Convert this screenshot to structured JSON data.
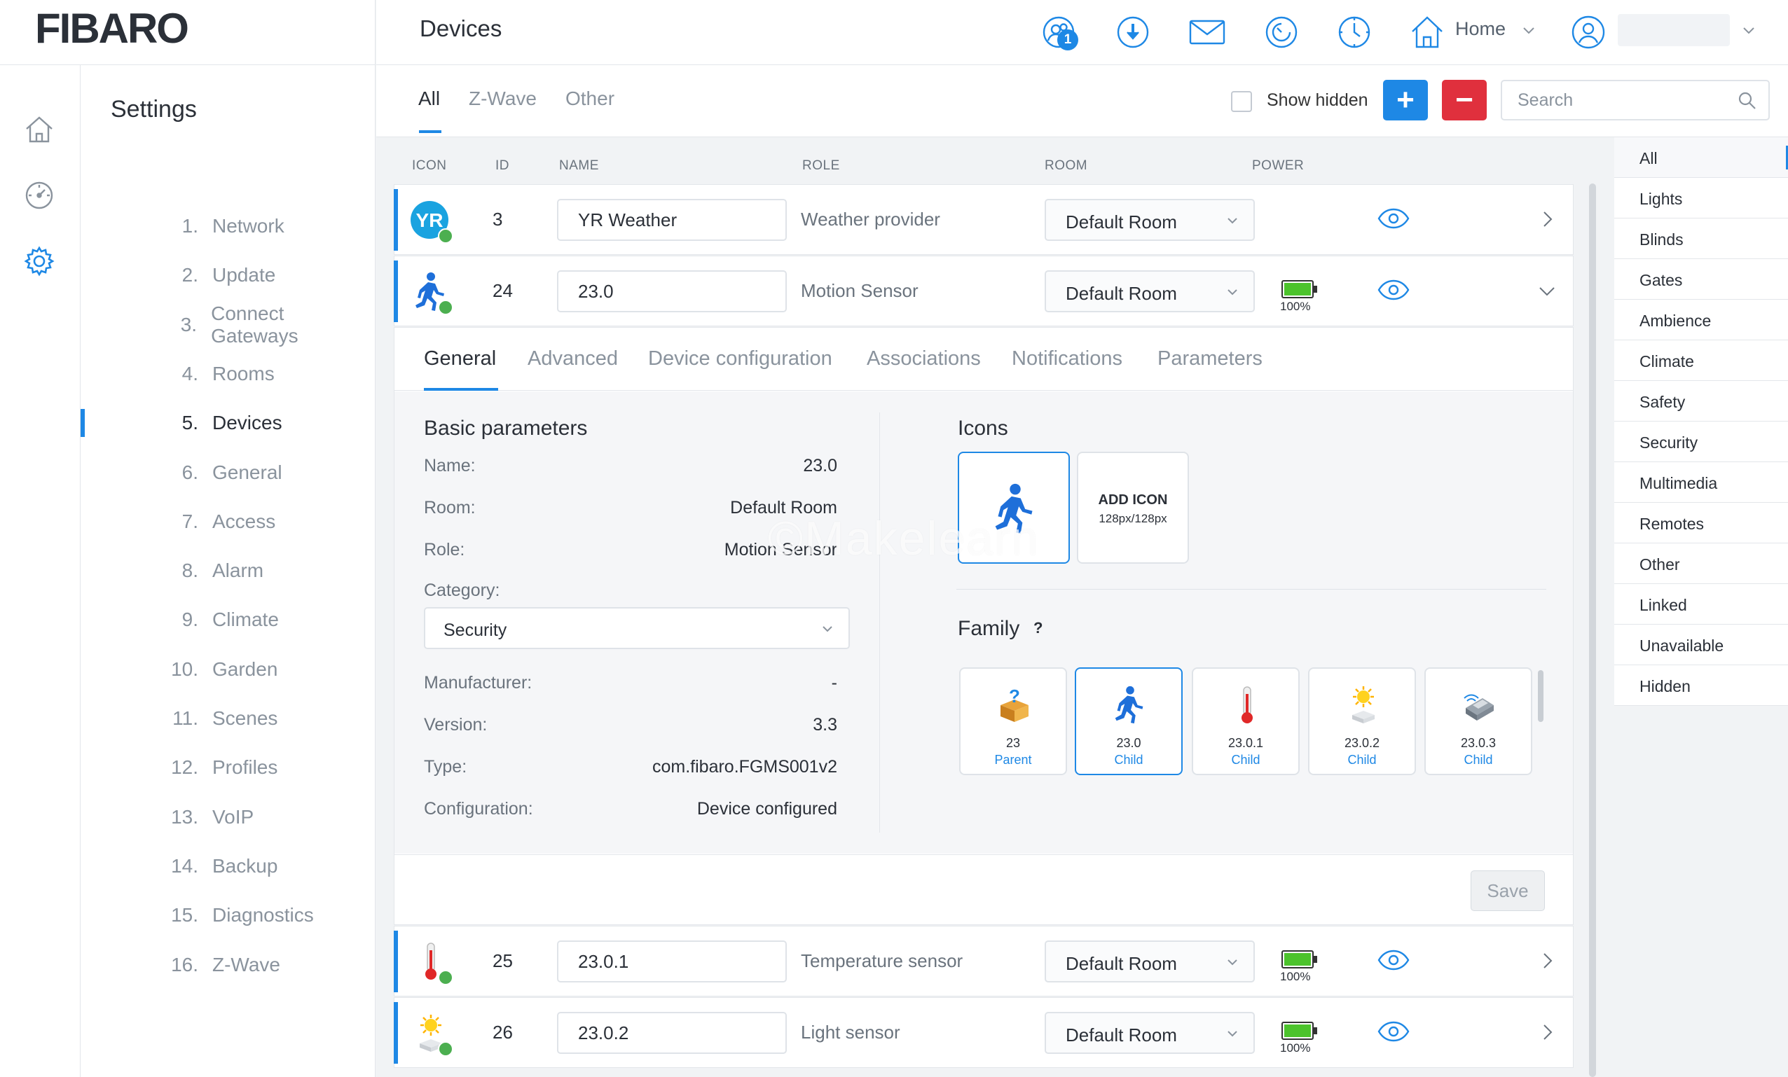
{
  "app": {
    "logo": "FIBARO"
  },
  "header": {
    "title": "Devices",
    "users_badge": "1",
    "home_label": "Home"
  },
  "settings": {
    "title": "Settings",
    "items": [
      {
        "num": "1.",
        "label": "Network"
      },
      {
        "num": "2.",
        "label": "Update"
      },
      {
        "num": "3.",
        "label": "Connect Gateways"
      },
      {
        "num": "4.",
        "label": "Rooms"
      },
      {
        "num": "5.",
        "label": "Devices"
      },
      {
        "num": "6.",
        "label": "General"
      },
      {
        "num": "7.",
        "label": "Access"
      },
      {
        "num": "8.",
        "label": "Alarm"
      },
      {
        "num": "9.",
        "label": "Climate"
      },
      {
        "num": "10.",
        "label": "Garden"
      },
      {
        "num": "11.",
        "label": "Scenes"
      },
      {
        "num": "12.",
        "label": "Profiles"
      },
      {
        "num": "13.",
        "label": "VoIP"
      },
      {
        "num": "14.",
        "label": "Backup"
      },
      {
        "num": "15.",
        "label": "Diagnostics"
      },
      {
        "num": "16.",
        "label": "Z-Wave"
      }
    ],
    "active_index": 4
  },
  "tabs": {
    "all": "All",
    "zwave": "Z-Wave",
    "other": "Other"
  },
  "toolbar": {
    "show_hidden_label": "Show hidden",
    "add_symbol": "+",
    "remove_symbol": "−",
    "search_placeholder": "Search"
  },
  "columns": {
    "icon": "ICON",
    "id": "ID",
    "name": "NAME",
    "role": "ROLE",
    "room": "ROOM",
    "power": "POWER"
  },
  "devices": [
    {
      "id": "3",
      "name": "YR Weather",
      "role": "Weather provider",
      "room": "Default Room",
      "power": "",
      "icon": "yr-weather-icon",
      "expanded": false
    },
    {
      "id": "24",
      "name": "23.0",
      "role": "Motion Sensor",
      "room": "Default Room",
      "power": "100%",
      "icon": "motion-sensor-icon",
      "expanded": true
    },
    {
      "id": "25",
      "name": "23.0.1",
      "role": "Temperature sensor",
      "room": "Default Room",
      "power": "100%",
      "icon": "thermometer-icon",
      "expanded": false
    },
    {
      "id": "26",
      "name": "23.0.2",
      "role": "Light sensor",
      "room": "Default Room",
      "power": "100%",
      "icon": "light-sensor-icon",
      "expanded": false
    }
  ],
  "panel": {
    "tabs": [
      "General",
      "Advanced",
      "Device configuration",
      "Associations",
      "Notifications",
      "Parameters"
    ],
    "basic_title": "Basic parameters",
    "name_label": "Name:",
    "name_value": "23.0",
    "room_label": "Room:",
    "room_value": "Default Room",
    "role_label": "Role:",
    "role_value": "Motion Sensor",
    "category_label": "Category:",
    "category_value": "Security",
    "manufacturer_label": "Manufacturer:",
    "manufacturer_value": "-",
    "version_label": "Version:",
    "version_value": "3.3",
    "type_label": "Type:",
    "type_value": "com.fibaro.FGMS001v2",
    "configuration_label": "Configuration:",
    "configuration_value": "Device configured",
    "icons_title": "Icons",
    "add_icon_title": "ADD ICON",
    "add_icon_size": "128px/128px",
    "family_title": "Family",
    "family_help": "?",
    "family": [
      {
        "id": "23",
        "relation": "Parent",
        "icon": "unknown-device-icon"
      },
      {
        "id": "23.0",
        "relation": "Child",
        "icon": "motion-sensor-icon"
      },
      {
        "id": "23.0.1",
        "relation": "Child",
        "icon": "thermometer-icon"
      },
      {
        "id": "23.0.2",
        "relation": "Child",
        "icon": "light-sensor-icon"
      },
      {
        "id": "23.0.3",
        "relation": "Child",
        "icon": "vibration-sensor-icon"
      }
    ],
    "save_label": "Save"
  },
  "categories": [
    "All",
    "Lights",
    "Blinds",
    "Gates",
    "Ambience",
    "Climate",
    "Safety",
    "Security",
    "Multimedia",
    "Remotes",
    "Other",
    "Linked",
    "Unavailable",
    "Hidden"
  ],
  "watermark": "©Makelearn",
  "colors": {
    "accent": "#1e88e5",
    "danger": "#e0303d",
    "ok": "#4caf50"
  }
}
